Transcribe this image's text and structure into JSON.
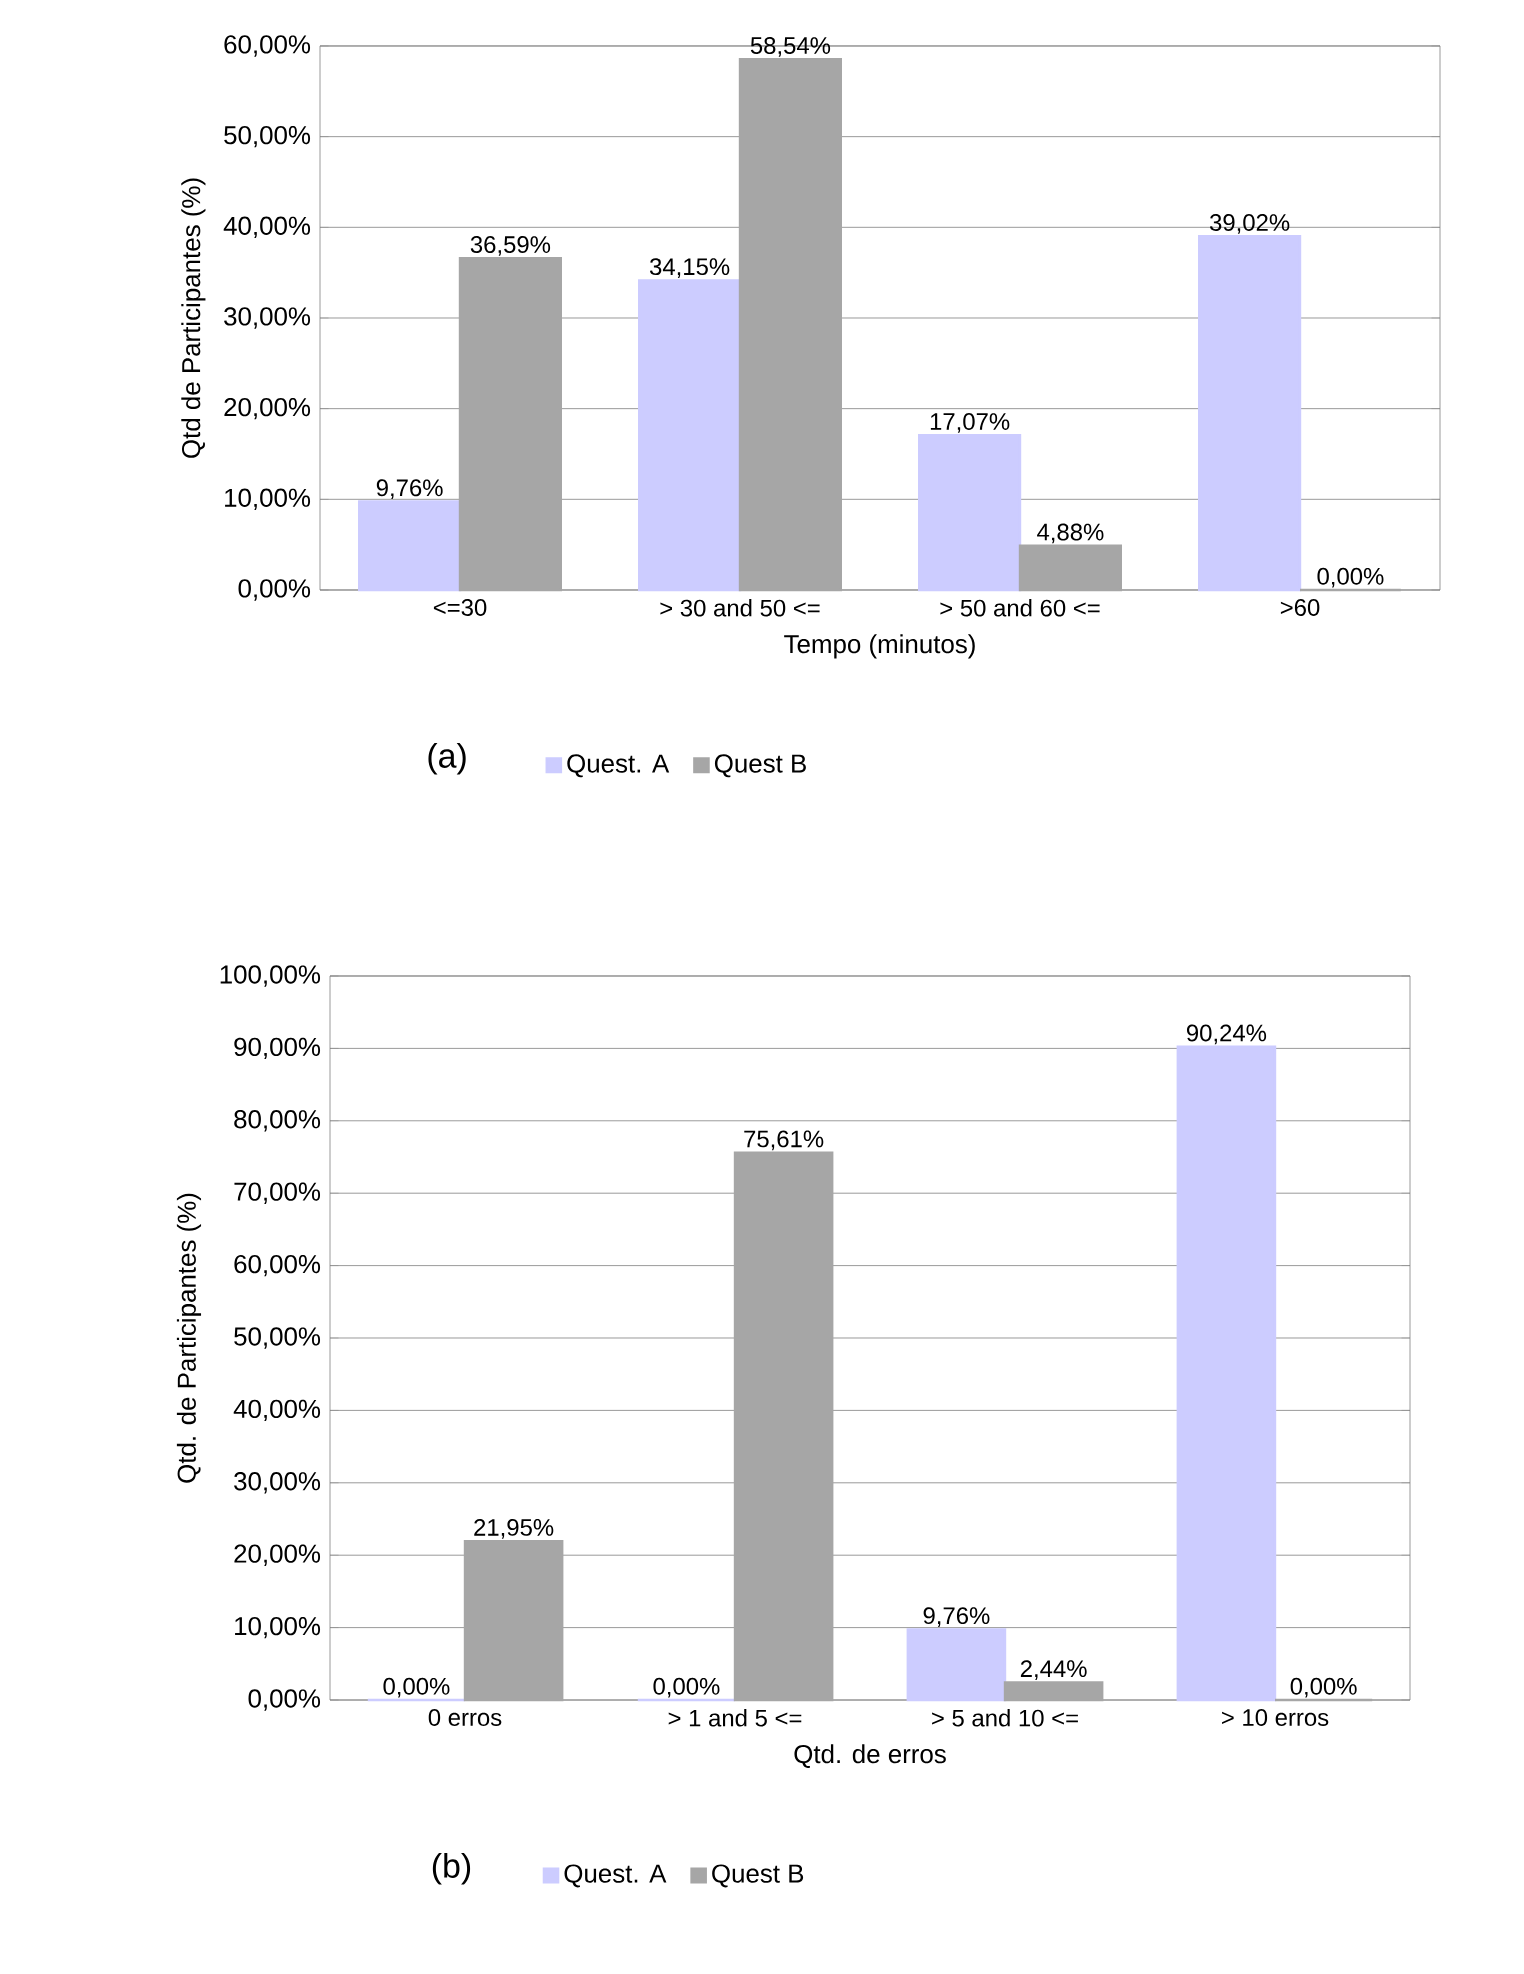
{
  "chart_data": [
    {
      "type": "bar",
      "annotations": [
        "(a)"
      ],
      "xlabel": "Tempo (minutos)",
      "ylabel": "Qtd de Participantes (%)",
      "categories": [
        "<=30",
        "> 30  and 50 <=",
        "> 50  and 60 <=",
        ">60"
      ],
      "series": [
        {
          "name": "Quest. A",
          "color": "#ccccff",
          "values": [
            9.76,
            34.15,
            17.07,
            39.02
          ],
          "value_labels": [
            "9,76%",
            "34,15%",
            "17,07%",
            "39,02%"
          ]
        },
        {
          "name": "Quest B",
          "color": "#a6a6a6",
          "values": [
            36.59,
            58.54,
            4.88,
            0.0
          ],
          "value_labels": [
            "36,59%",
            "58,54%",
            "4,88%",
            "0,00%"
          ]
        }
      ],
      "ylim": [
        0,
        60
      ],
      "yticks": [
        {
          "value": 0,
          "label": "0,00%"
        },
        {
          "value": 10,
          "label": "10,00%"
        },
        {
          "value": 20,
          "label": "20,00%"
        },
        {
          "value": 30,
          "label": "30,00%"
        },
        {
          "value": 40,
          "label": "40,00%"
        },
        {
          "value": 50,
          "label": "50,00%"
        },
        {
          "value": 60,
          "label": "60,00%"
        }
      ],
      "grid": "y",
      "legend": "bottom"
    },
    {
      "type": "bar",
      "annotations": [
        "(b)"
      ],
      "xlabel": "Qtd. de erros",
      "ylabel": "Qtd. de Participantes (%)",
      "categories": [
        "0 erros",
        "> 1 and 5 <=",
        "> 5 and 10 <=",
        "> 10 erros"
      ],
      "series": [
        {
          "name": "Quest. A",
          "color": "#ccccff",
          "values": [
            0.0,
            0.0,
            9.76,
            90.24
          ],
          "value_labels": [
            "0,00%",
            "0,00%",
            "9,76%",
            "90,24%"
          ]
        },
        {
          "name": "Quest B",
          "color": "#a6a6a6",
          "values": [
            21.95,
            75.61,
            2.44,
            0.0
          ],
          "value_labels": [
            "21,95%",
            "75,61%",
            "2,44%",
            "0,00%"
          ]
        }
      ],
      "ylim": [
        0,
        100
      ],
      "yticks": [
        {
          "value": 0,
          "label": "0,00%"
        },
        {
          "value": 10,
          "label": "10,00%"
        },
        {
          "value": 20,
          "label": "20,00%"
        },
        {
          "value": 30,
          "label": "30,00%"
        },
        {
          "value": 40,
          "label": "40,00%"
        },
        {
          "value": 50,
          "label": "50,00%"
        },
        {
          "value": 60,
          "label": "60,00%"
        },
        {
          "value": 70,
          "label": "70,00%"
        },
        {
          "value": 80,
          "label": "80,00%"
        },
        {
          "value": 90,
          "label": "90,00%"
        },
        {
          "value": 100,
          "label": "100,00%"
        }
      ],
      "grid": "y",
      "legend": "bottom"
    }
  ]
}
